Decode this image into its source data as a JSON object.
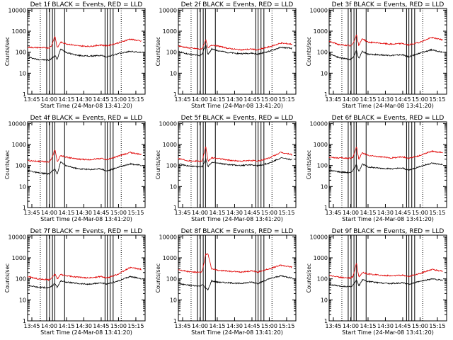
{
  "colors": {
    "events": "#000000",
    "lld": "#e00000",
    "background": "#ffffff",
    "axes": "#000000"
  },
  "chart_data": [
    {
      "type": "line",
      "title": "Det 1f BLACK = Events, RED = LLD",
      "xlabel": "Start Time (24-Mar-08 13:41:20)",
      "ylabel": "Counts/sec",
      "yscale": "log",
      "ylim": [
        1,
        12000
      ],
      "x_ticks": [
        "13:45",
        "14:00",
        "14:15",
        "14:30",
        "14:45",
        "15:00",
        "15:15"
      ],
      "y_ticks": [
        "1",
        "10",
        "100",
        "1000",
        "10000"
      ],
      "series": [
        {
          "name": "Events",
          "color": "#000000",
          "x": [
            "13:41",
            "13:50",
            "14:00",
            "14:02",
            "14:05",
            "14:07",
            "14:10",
            "14:15",
            "14:25",
            "14:35",
            "14:45",
            "14:50",
            "15:00",
            "15:10",
            "15:20"
          ],
          "y": [
            60,
            45,
            42,
            50,
            70,
            45,
            150,
            95,
            70,
            65,
            70,
            60,
            85,
            110,
            95
          ]
        },
        {
          "name": "LLD",
          "color": "#e00000",
          "x": [
            "13:41",
            "13:50",
            "14:00",
            "14:02",
            "14:05",
            "14:07",
            "14:10",
            "14:15",
            "14:25",
            "14:35",
            "14:45",
            "14:50",
            "15:00",
            "15:10",
            "15:20"
          ],
          "y": [
            170,
            165,
            160,
            200,
            600,
            160,
            300,
            250,
            200,
            190,
            220,
            200,
            280,
            420,
            330
          ]
        }
      ]
    },
    {
      "type": "line",
      "title": "Det 2f BLACK = Events, RED = LLD",
      "xlabel": "Start Time (24-Mar-08 13:41:20)",
      "ylabel": "Counts/sec",
      "yscale": "log",
      "ylim": [
        1,
        12000
      ],
      "x_ticks": [
        "13:45",
        "14:00",
        "14:15",
        "14:30",
        "14:45",
        "15:00",
        "15:15"
      ],
      "y_ticks": [
        "1",
        "10",
        "100",
        "1000",
        "10000"
      ],
      "series": [
        {
          "name": "Events",
          "color": "#000000",
          "x": [
            "13:41",
            "13:50",
            "14:00",
            "14:02",
            "14:05",
            "14:07",
            "14:10",
            "14:15",
            "14:25",
            "14:35",
            "14:45",
            "14:50",
            "15:00",
            "15:10",
            "15:20"
          ],
          "y": [
            110,
            80,
            70,
            80,
            250,
            75,
            140,
            120,
            95,
            85,
            90,
            80,
            110,
            170,
            150
          ]
        },
        {
          "name": "LLD",
          "color": "#e00000",
          "x": [
            "13:41",
            "13:50",
            "14:00",
            "14:02",
            "14:05",
            "14:07",
            "14:10",
            "14:15",
            "14:25",
            "14:35",
            "14:45",
            "14:50",
            "15:00",
            "15:10",
            "15:20"
          ],
          "y": [
            200,
            160,
            140,
            150,
            400,
            150,
            220,
            200,
            150,
            130,
            140,
            130,
            180,
            270,
            240
          ]
        }
      ]
    },
    {
      "type": "line",
      "title": "Det 3f BLACK = Events, RED = LLD",
      "xlabel": "Start Time (24-Mar-08 13:41:20)",
      "ylabel": "Counts/sec",
      "yscale": "log",
      "ylim": [
        1,
        12000
      ],
      "x_ticks": [
        "13:45",
        "14:00",
        "14:15",
        "14:30",
        "14:45",
        "15:00",
        "15:15"
      ],
      "y_ticks": [
        "1",
        "10",
        "100",
        "1000",
        "10000"
      ],
      "series": [
        {
          "name": "Events",
          "color": "#000000",
          "x": [
            "13:41",
            "13:50",
            "14:00",
            "14:02",
            "14:05",
            "14:07",
            "14:10",
            "14:15",
            "14:25",
            "14:35",
            "14:45",
            "14:50",
            "15:00",
            "15:10",
            "15:20"
          ],
          "y": [
            90,
            55,
            45,
            55,
            120,
            50,
            110,
            80,
            75,
            70,
            75,
            60,
            90,
            130,
            100
          ]
        },
        {
          "name": "LLD",
          "color": "#e00000",
          "x": [
            "13:41",
            "13:50",
            "14:00",
            "14:02",
            "14:05",
            "14:07",
            "14:10",
            "14:15",
            "14:25",
            "14:35",
            "14:45",
            "14:50",
            "15:00",
            "15:10",
            "15:20"
          ],
          "y": [
            330,
            230,
            200,
            250,
            700,
            200,
            450,
            300,
            270,
            240,
            260,
            220,
            300,
            500,
            380
          ]
        }
      ]
    },
    {
      "type": "line",
      "title": "Det 4f BLACK = Events, RED = LLD",
      "xlabel": "Start Time (24-Mar-08 13:41:20)",
      "ylabel": "Counts/sec",
      "yscale": "log",
      "ylim": [
        1,
        12000
      ],
      "x_ticks": [
        "13:45",
        "14:00",
        "14:15",
        "14:30",
        "14:45",
        "15:00",
        "15:15"
      ],
      "y_ticks": [
        "1",
        "10",
        "100",
        "1000",
        "10000"
      ],
      "series": [
        {
          "name": "Events",
          "color": "#000000",
          "x": [
            "13:41",
            "13:50",
            "14:00",
            "14:02",
            "14:05",
            "14:07",
            "14:10",
            "14:15",
            "14:25",
            "14:35",
            "14:45",
            "14:50",
            "15:00",
            "15:10",
            "15:20"
          ],
          "y": [
            60,
            45,
            40,
            50,
            70,
            40,
            150,
            95,
            70,
            65,
            70,
            55,
            85,
            120,
            100
          ]
        },
        {
          "name": "LLD",
          "color": "#e00000",
          "x": [
            "13:41",
            "13:50",
            "14:00",
            "14:02",
            "14:05",
            "14:07",
            "14:10",
            "14:15",
            "14:25",
            "14:35",
            "14:45",
            "14:50",
            "15:00",
            "15:10",
            "15:20"
          ],
          "y": [
            170,
            160,
            150,
            200,
            600,
            150,
            300,
            250,
            200,
            190,
            220,
            190,
            280,
            420,
            330
          ]
        }
      ]
    },
    {
      "type": "line",
      "title": "Det 5f BLACK = Events, RED = LLD",
      "xlabel": "Start Time (24-Mar-08 13:41:20)",
      "ylabel": "Counts/sec",
      "yscale": "log",
      "ylim": [
        1,
        12000
      ],
      "x_ticks": [
        "13:45",
        "14:00",
        "14:15",
        "14:30",
        "14:45",
        "15:00",
        "15:15"
      ],
      "y_ticks": [
        "1",
        "10",
        "100",
        "1000",
        "10000"
      ],
      "series": [
        {
          "name": "Events",
          "color": "#000000",
          "x": [
            "13:41",
            "13:50",
            "14:00",
            "14:02",
            "14:05",
            "14:07",
            "14:10",
            "14:15",
            "14:25",
            "14:35",
            "14:45",
            "14:50",
            "15:00",
            "15:10",
            "15:20"
          ],
          "y": [
            120,
            95,
            85,
            90,
            200,
            90,
            140,
            130,
            110,
            100,
            110,
            95,
            130,
            230,
            190
          ]
        },
        {
          "name": "LLD",
          "color": "#e00000",
          "x": [
            "13:41",
            "13:50",
            "14:00",
            "14:02",
            "14:05",
            "14:07",
            "14:10",
            "14:15",
            "14:25",
            "14:35",
            "14:45",
            "14:50",
            "15:00",
            "15:10",
            "15:20"
          ],
          "y": [
            220,
            170,
            160,
            170,
            800,
            160,
            230,
            220,
            180,
            160,
            175,
            160,
            230,
            420,
            330
          ]
        }
      ]
    },
    {
      "type": "line",
      "title": "Det 6f BLACK = Events, RED = LLD",
      "xlabel": "Start Time (24-Mar-08 13:41:20)",
      "ylabel": "Counts/sec",
      "yscale": "log",
      "ylim": [
        1,
        12000
      ],
      "x_ticks": [
        "13:45",
        "14:00",
        "14:15",
        "14:30",
        "14:45",
        "15:00",
        "15:15"
      ],
      "y_ticks": [
        "1",
        "10",
        "100",
        "1000",
        "10000"
      ],
      "series": [
        {
          "name": "Events",
          "color": "#000000",
          "x": [
            "13:41",
            "13:50",
            "14:00",
            "14:02",
            "14:05",
            "14:07",
            "14:10",
            "14:15",
            "14:25",
            "14:35",
            "14:45",
            "14:50",
            "15:00",
            "15:10",
            "15:20"
          ],
          "y": [
            60,
            50,
            45,
            60,
            110,
            50,
            120,
            85,
            75,
            70,
            75,
            60,
            90,
            130,
            110
          ]
        },
        {
          "name": "LLD",
          "color": "#e00000",
          "x": [
            "13:41",
            "13:50",
            "14:00",
            "14:02",
            "14:05",
            "14:07",
            "14:10",
            "14:15",
            "14:25",
            "14:35",
            "14:45",
            "14:50",
            "15:00",
            "15:10",
            "15:20"
          ],
          "y": [
            250,
            230,
            220,
            250,
            800,
            200,
            400,
            300,
            260,
            230,
            260,
            220,
            300,
            480,
            400
          ]
        }
      ]
    },
    {
      "type": "line",
      "title": "Det 7f BLACK = Events, RED = LLD",
      "xlabel": "Start Time (24-Mar-08 13:41:20)",
      "ylabel": "Counts/sec",
      "yscale": "log",
      "ylim": [
        1,
        12000
      ],
      "x_ticks": [
        "13:45",
        "14:00",
        "14:15",
        "14:30",
        "14:45",
        "15:00",
        "15:15"
      ],
      "y_ticks": [
        "1",
        "10",
        "100",
        "1000",
        "10000"
      ],
      "series": [
        {
          "name": "Events",
          "color": "#000000",
          "x": [
            "13:41",
            "13:50",
            "14:00",
            "14:02",
            "14:05",
            "14:07",
            "14:10",
            "14:15",
            "14:25",
            "14:35",
            "14:45",
            "14:50",
            "15:00",
            "15:10",
            "15:20"
          ],
          "y": [
            50,
            40,
            38,
            45,
            60,
            40,
            80,
            70,
            60,
            55,
            65,
            55,
            80,
            130,
            100
          ]
        },
        {
          "name": "LLD",
          "color": "#e00000",
          "x": [
            "13:41",
            "13:50",
            "14:00",
            "14:02",
            "14:05",
            "14:07",
            "14:10",
            "14:15",
            "14:25",
            "14:35",
            "14:45",
            "14:50",
            "15:00",
            "15:10",
            "15:20"
          ],
          "y": [
            130,
            100,
            90,
            110,
            170,
            100,
            160,
            140,
            120,
            110,
            130,
            110,
            170,
            350,
            280
          ]
        }
      ]
    },
    {
      "type": "line",
      "title": "Det 8f BLACK = Events, RED = LLD",
      "xlabel": "Start Time (24-Mar-08 13:41:20)",
      "ylabel": "Counts/sec",
      "yscale": "log",
      "ylim": [
        1,
        12000
      ],
      "x_ticks": [
        "13:45",
        "14:00",
        "14:15",
        "14:30",
        "14:45",
        "15:00",
        "15:15"
      ],
      "y_ticks": [
        "1",
        "10",
        "100",
        "1000",
        "10000"
      ],
      "series": [
        {
          "name": "Events",
          "color": "#000000",
          "x": [
            "13:41",
            "13:50",
            "14:00",
            "14:02",
            "14:05",
            "14:07",
            "14:10",
            "14:15",
            "14:25",
            "14:35",
            "14:45",
            "14:50",
            "15:00",
            "15:10",
            "15:20"
          ],
          "y": [
            60,
            50,
            45,
            55,
            35,
            30,
            80,
            70,
            65,
            60,
            70,
            60,
            100,
            140,
            110
          ]
        },
        {
          "name": "LLD",
          "color": "#e00000",
          "x": [
            "13:41",
            "13:50",
            "14:00",
            "14:02",
            "14:05",
            "14:07",
            "14:10",
            "14:15",
            "14:25",
            "14:35",
            "14:45",
            "14:50",
            "15:00",
            "15:10",
            "15:20"
          ],
          "y": [
            280,
            220,
            200,
            230,
            1500,
            1500,
            300,
            260,
            230,
            210,
            240,
            210,
            300,
            450,
            360
          ]
        }
      ]
    },
    {
      "type": "line",
      "title": "Det 9f BLACK = Events, RED = LLD",
      "xlabel": "Start Time (24-Mar-08 13:41:20)",
      "ylabel": "Counts/sec",
      "yscale": "log",
      "ylim": [
        1,
        12000
      ],
      "x_ticks": [
        "13:45",
        "14:00",
        "14:15",
        "14:30",
        "14:45",
        "15:00",
        "15:15"
      ],
      "y_ticks": [
        "1",
        "10",
        "100",
        "1000",
        "10000"
      ],
      "series": [
        {
          "name": "Events",
          "color": "#000000",
          "x": [
            "13:41",
            "13:50",
            "14:00",
            "14:02",
            "14:05",
            "14:07",
            "14:10",
            "14:15",
            "14:25",
            "14:35",
            "14:45",
            "14:50",
            "15:00",
            "15:10",
            "15:20"
          ],
          "y": [
            55,
            45,
            42,
            50,
            90,
            45,
            90,
            75,
            65,
            60,
            65,
            55,
            75,
            100,
            85
          ]
        },
        {
          "name": "LLD",
          "color": "#e00000",
          "x": [
            "13:41",
            "13:50",
            "14:00",
            "14:02",
            "14:05",
            "14:07",
            "14:10",
            "14:15",
            "14:25",
            "14:35",
            "14:45",
            "14:50",
            "15:00",
            "15:10",
            "15:20"
          ],
          "y": [
            150,
            120,
            110,
            130,
            600,
            120,
            200,
            170,
            150,
            140,
            150,
            130,
            180,
            280,
            230
          ]
        }
      ]
    }
  ]
}
